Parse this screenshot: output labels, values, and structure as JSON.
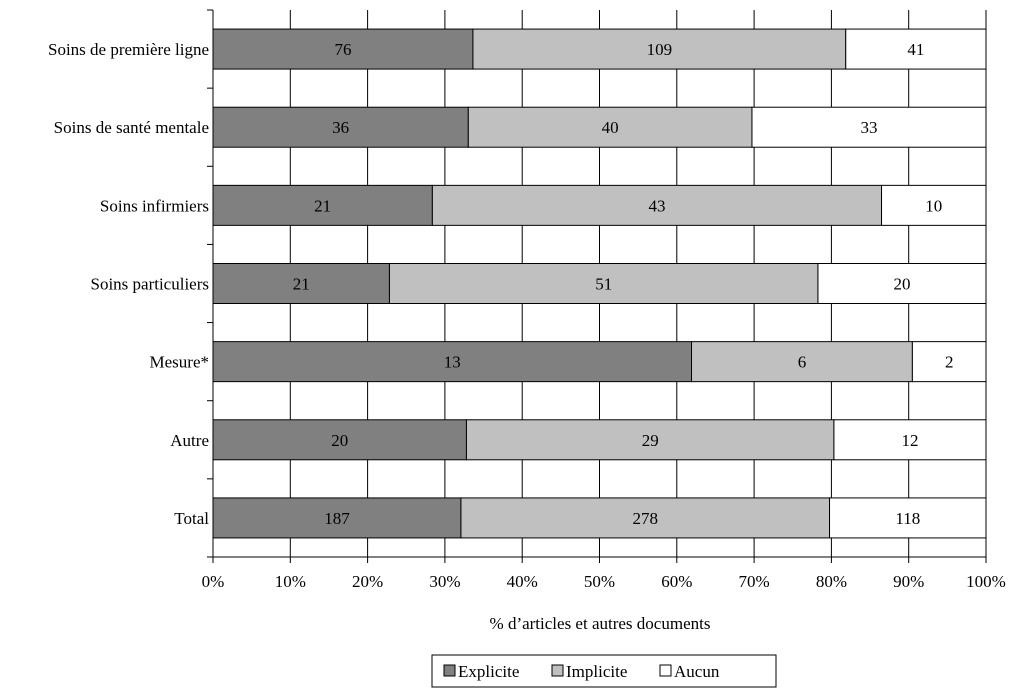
{
  "chart_data": {
    "type": "bar",
    "orientation": "horizontal",
    "stacked": "percent",
    "categories": [
      "Soins de première ligne",
      "Soins de santé mentale",
      "Soins infirmiers",
      "Soins particuliers",
      "Mesure*",
      "Autre",
      "Total"
    ],
    "series": [
      {
        "name": "Explicite",
        "color": "#808080",
        "values": [
          76,
          36,
          21,
          21,
          13,
          20,
          187
        ]
      },
      {
        "name": "Implicite",
        "color": "#c0c0c0",
        "values": [
          109,
          40,
          43,
          51,
          6,
          29,
          278
        ]
      },
      {
        "name": "Aucun",
        "color": "#ffffff",
        "values": [
          41,
          33,
          10,
          20,
          2,
          12,
          118
        ]
      }
    ],
    "xlabel": "% d’articles et autres documents",
    "xlim": [
      0,
      100
    ],
    "xticks": [
      "0%",
      "10%",
      "20%",
      "30%",
      "40%",
      "50%",
      "60%",
      "70%",
      "80%",
      "90%",
      "100%"
    ],
    "grid": "vertical",
    "legend_position": "bottom"
  }
}
